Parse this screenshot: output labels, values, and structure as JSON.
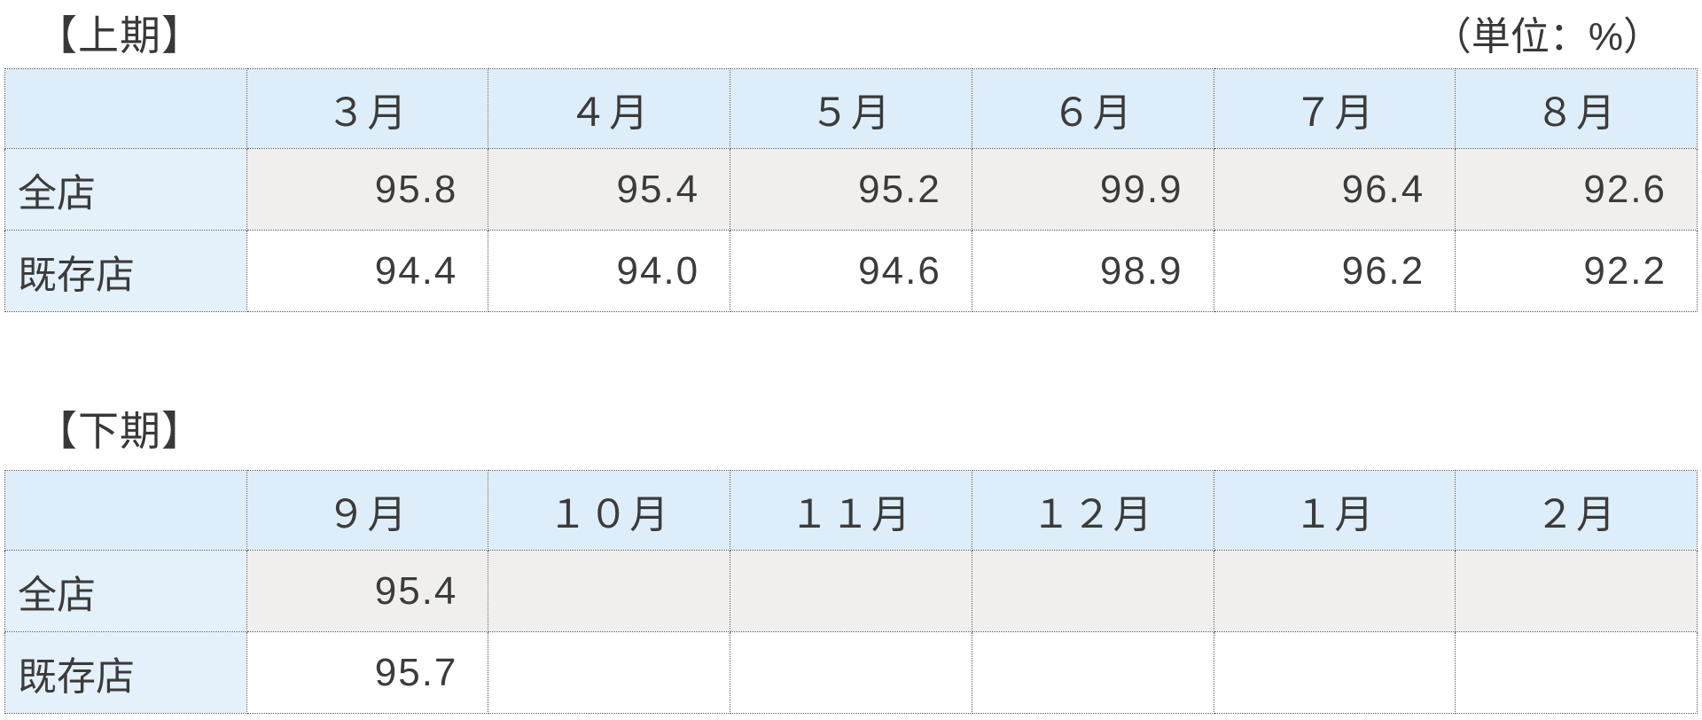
{
  "unit_label": "（単位：%）",
  "colors": {
    "header_blue": "#ddedf9",
    "label_blue": "#e4f1fb",
    "grey_row": "#f0efee",
    "border": "#585858",
    "text": "#3b3b3b"
  },
  "tables": [
    {
      "title": "【上期】",
      "columns": [
        "３月",
        "４月",
        "５月",
        "６月",
        "７月",
        "８月"
      ],
      "rows": [
        {
          "label": "全店",
          "values": [
            "95.8",
            "95.4",
            "95.2",
            "99.9",
            "96.4",
            "92.6"
          ]
        },
        {
          "label": "既存店",
          "values": [
            "94.4",
            "94.0",
            "94.6",
            "98.9",
            "96.2",
            "92.2"
          ]
        }
      ]
    },
    {
      "title": "【下期】",
      "columns": [
        "９月",
        "１０月",
        "１１月",
        "１２月",
        "１月",
        "２月"
      ],
      "rows": [
        {
          "label": "全店",
          "values": [
            "95.4",
            "",
            "",
            "",
            "",
            ""
          ]
        },
        {
          "label": "既存店",
          "values": [
            "95.7",
            "",
            "",
            "",
            "",
            ""
          ]
        }
      ]
    }
  ]
}
